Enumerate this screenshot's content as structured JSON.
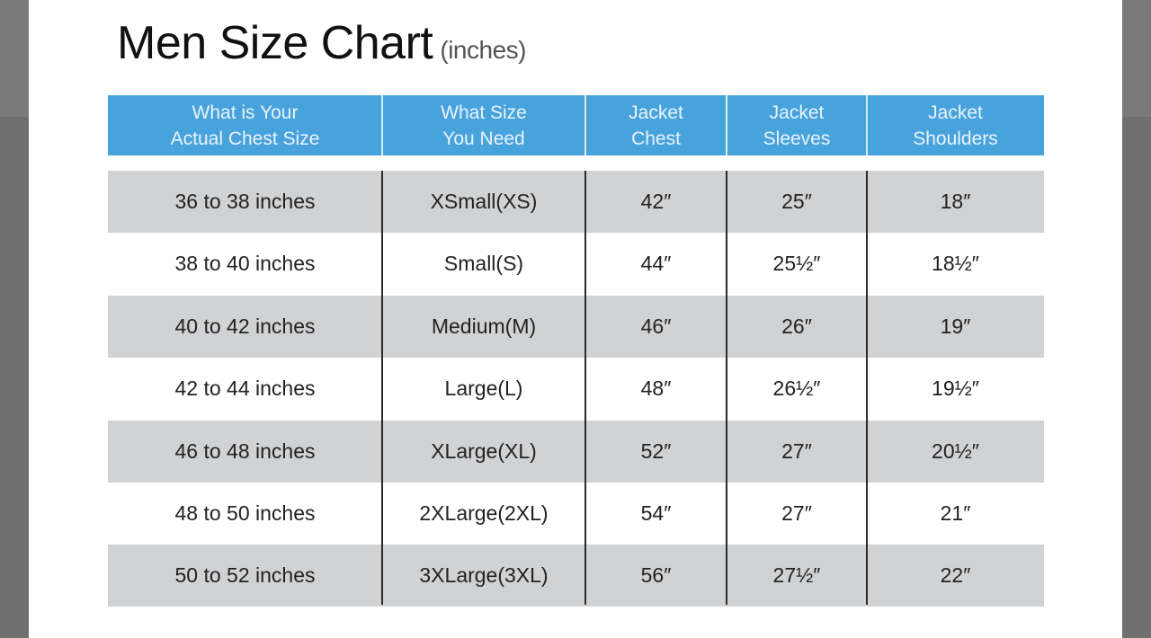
{
  "title": "Men Size Chart",
  "title_unit": "(inches)",
  "colors": {
    "header_bg": "#48a3dd",
    "row_shade": "#d1d2d4",
    "backdrop": "#6f6f6f"
  },
  "table": {
    "headers": [
      "What is Your\nActual Chest Size",
      "What Size\nYou Need",
      "Jacket\nChest",
      "Jacket\nSleeves",
      "Jacket\nShoulders"
    ],
    "rows": [
      [
        "36 to 38 inches",
        "XSmall(XS)",
        "42″",
        "25″",
        "18″"
      ],
      [
        "38 to 40 inches",
        "Small(S)",
        "44″",
        "25½″",
        "18½″"
      ],
      [
        "40 to 42 inches",
        "Medium(M)",
        "46″",
        "26″",
        "19″"
      ],
      [
        "42 to 44 inches",
        "Large(L)",
        "48″",
        "26½″",
        "19½″"
      ],
      [
        "46 to 48 inches",
        "XLarge(XL)",
        "52″",
        "27″",
        "20½″"
      ],
      [
        "48 to 50 inches",
        "2XLarge(2XL)",
        "54″",
        "27″",
        "21″"
      ],
      [
        "50 to 52 inches",
        "3XLarge(3XL)",
        "56″",
        "27½″",
        "22″"
      ]
    ]
  }
}
